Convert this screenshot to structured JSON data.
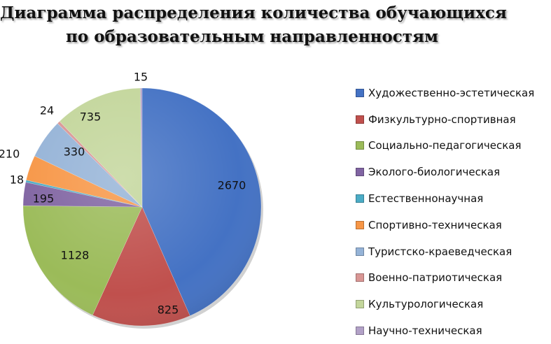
{
  "title": {
    "line1": "Диаграмма распределения количества обучающихся",
    "line2": "по образовательным направленностям"
  },
  "chart_data": {
    "type": "pie",
    "categories": [
      "Художественно-эстетическая",
      "Физкультурно-спортивная",
      "Социально-педагогическая",
      "Эколого-биологическая",
      "Естественнонаучная",
      "Спортивно-техническая",
      "Туристско-краеведческая",
      "Военно-патриотическая",
      "Культурологическая",
      "Научно-техническая"
    ],
    "values": [
      2670,
      825,
      1128,
      195,
      18,
      210,
      330,
      24,
      735,
      15
    ],
    "colors": [
      "#4472C4",
      "#C0504D",
      "#9BBB59",
      "#8064A2",
      "#4BACC6",
      "#F79646",
      "#95B3D7",
      "#D99694",
      "#C3D69B",
      "#B2A1C7"
    ],
    "legend_position": "right"
  }
}
